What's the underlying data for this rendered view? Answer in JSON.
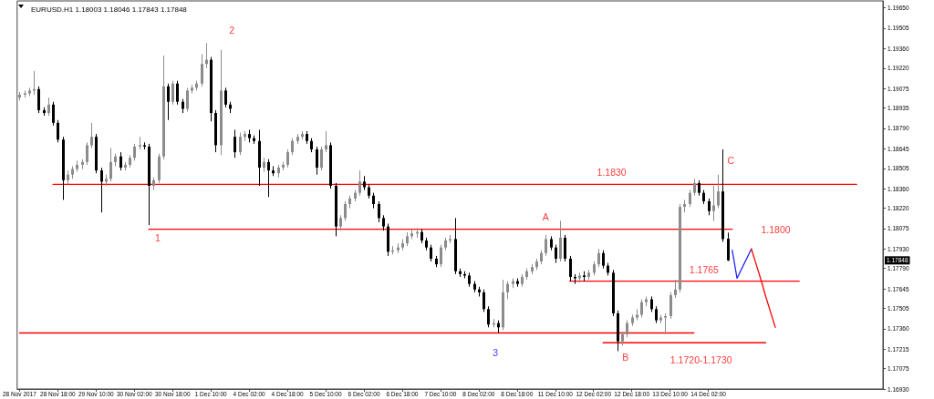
{
  "chart_data": {
    "type": "candlestick",
    "title": "EURUSD.H1 1.18003 1.18046 1.17843 1.17848",
    "categories": [
      "28 Nov 2017",
      null,
      null,
      null,
      null,
      null,
      null,
      null,
      "28 Nov 18:00",
      null,
      null,
      null,
      null,
      null,
      null,
      null,
      "29 Nov 10:00",
      null,
      null,
      null,
      null,
      null,
      null,
      null,
      "30 Nov 02:00",
      null,
      null,
      null,
      null,
      null,
      null,
      null,
      "30 Nov 18:00",
      null,
      null,
      null,
      null,
      null,
      null,
      null,
      "1 Dec 10:00",
      null,
      null,
      null,
      null,
      null,
      null,
      null,
      "4 Dec 02:00",
      null,
      null,
      null,
      null,
      null,
      null,
      null,
      "4 Dec 18:00",
      null,
      null,
      null,
      null,
      null,
      null,
      null,
      "5 Dec 10:00",
      null,
      null,
      null,
      null,
      null,
      null,
      null,
      "6 Dec 02:00",
      null,
      null,
      null,
      null,
      null,
      null,
      null,
      "6 Dec 18:00",
      null,
      null,
      null,
      null,
      null,
      null,
      null,
      "7 Dec 10:00",
      null,
      null,
      null,
      null,
      null,
      null,
      null,
      "8 Dec 02:00",
      null,
      null,
      null,
      null,
      null,
      null,
      null,
      "8 Dec 18:00",
      null,
      null,
      null,
      null,
      null,
      null,
      null,
      "11 Dec 10:00",
      null,
      null,
      null,
      null,
      null,
      null,
      null,
      "12 Dec 02:00",
      null,
      null,
      null,
      null,
      null,
      null,
      null,
      "12 Dec 18:00",
      null,
      null,
      null,
      null,
      null,
      null,
      null,
      "13 Dec 10:00",
      null,
      null,
      null,
      null,
      null,
      null,
      null,
      "14 Dec 02:00",
      null,
      null,
      null,
      null,
      null,
      null,
      null,
      null,
      null,
      null,
      null,
      null,
      null,
      null,
      null,
      null,
      null,
      null,
      null,
      null,
      null,
      null,
      null,
      null,
      null,
      null,
      null,
      null,
      null,
      null,
      null,
      null,
      null,
      null,
      null,
      null
    ],
    "ohlc": [
      [
        1.1901,
        1.1905,
        1.1899,
        1.1903
      ],
      [
        1.1903,
        1.1906,
        1.1901,
        1.1904
      ],
      [
        1.1904,
        1.1908,
        1.1902,
        1.1906
      ],
      [
        1.1906,
        1.192,
        1.1903,
        1.1907
      ],
      [
        1.1907,
        1.1909,
        1.189,
        1.1892
      ],
      [
        1.1892,
        1.1894,
        1.1888,
        1.189
      ],
      [
        1.189,
        1.1901,
        1.1888,
        1.1896
      ],
      [
        1.1896,
        1.1898,
        1.1881,
        1.1883
      ],
      [
        1.1883,
        1.1885,
        1.1869,
        1.1871
      ],
      [
        1.1871,
        1.1873,
        1.1828,
        1.1842
      ],
      [
        1.1842,
        1.1849,
        1.1839,
        1.1846
      ],
      [
        1.1846,
        1.1852,
        1.1843,
        1.185
      ],
      [
        1.185,
        1.1856,
        1.1848,
        1.1853
      ],
      [
        1.1853,
        1.1857,
        1.185,
        1.1855
      ],
      [
        1.1855,
        1.1869,
        1.1853,
        1.1867
      ],
      [
        1.1867,
        1.1883,
        1.1865,
        1.1873
      ],
      [
        1.1873,
        1.1875,
        1.1847,
        1.1849
      ],
      [
        1.1849,
        1.1851,
        1.1819,
        1.1841
      ],
      [
        1.1841,
        1.1846,
        1.1838,
        1.1843
      ],
      [
        1.1843,
        1.1865,
        1.1841,
        1.1855
      ],
      [
        1.1855,
        1.1861,
        1.1852,
        1.1859
      ],
      [
        1.1859,
        1.1862,
        1.1849,
        1.1851
      ],
      [
        1.1851,
        1.1855,
        1.1849,
        1.1853
      ],
      [
        1.1853,
        1.186,
        1.1851,
        1.1858
      ],
      [
        1.1858,
        1.1868,
        1.1856,
        1.1866
      ],
      [
        1.1866,
        1.1873,
        1.1864,
        1.1867
      ],
      [
        1.1867,
        1.1869,
        1.1864,
        1.1866
      ],
      [
        1.1866,
        1.1868,
        1.181,
        1.1838
      ],
      [
        1.1838,
        1.1844,
        1.1835,
        1.1842
      ],
      [
        1.1842,
        1.1861,
        1.184,
        1.1859
      ],
      [
        1.1859,
        1.1931,
        1.1857,
        1.1909
      ],
      [
        1.1909,
        1.1911,
        1.1885,
        1.1898
      ],
      [
        1.1898,
        1.1913,
        1.1896,
        1.1911
      ],
      [
        1.1911,
        1.1913,
        1.1896,
        1.1898
      ],
      [
        1.1898,
        1.19,
        1.189,
        1.1893
      ],
      [
        1.1893,
        1.1908,
        1.1891,
        1.1906
      ],
      [
        1.1906,
        1.191,
        1.1904,
        1.1908
      ],
      [
        1.1908,
        1.1913,
        1.1906,
        1.1911
      ],
      [
        1.1911,
        1.1932,
        1.1909,
        1.1925
      ],
      [
        1.1925,
        1.194,
        1.1922,
        1.1928
      ],
      [
        1.1928,
        1.193,
        1.1884,
        1.189
      ],
      [
        1.189,
        1.1892,
        1.1862,
        1.1867
      ],
      [
        1.1867,
        1.1935,
        1.186,
        1.1906
      ],
      [
        1.1906,
        1.1908,
        1.1894,
        1.1896
      ],
      [
        1.1896,
        1.1898,
        1.189,
        1.1893
      ],
      [
        1.1873,
        1.1878,
        1.1858,
        1.1862
      ],
      [
        1.1862,
        1.1876,
        1.186,
        1.1873
      ],
      [
        1.1873,
        1.1877,
        1.187,
        1.1875
      ],
      [
        1.1875,
        1.1878,
        1.1869,
        1.1872
      ],
      [
        1.1872,
        1.1874,
        1.1868,
        1.187
      ],
      [
        1.187,
        1.1878,
        1.1838,
        1.1851
      ],
      [
        1.1851,
        1.1858,
        1.1848,
        1.1855
      ],
      [
        1.1855,
        1.1857,
        1.183,
        1.1849
      ],
      [
        1.1849,
        1.1852,
        1.1845,
        1.1847
      ],
      [
        1.1847,
        1.1853,
        1.1844,
        1.1851
      ],
      [
        1.1851,
        1.1855,
        1.1849,
        1.1853
      ],
      [
        1.1853,
        1.1864,
        1.1851,
        1.1862
      ],
      [
        1.1862,
        1.1872,
        1.186,
        1.187
      ],
      [
        1.187,
        1.1875,
        1.1868,
        1.1873
      ],
      [
        1.1873,
        1.1877,
        1.1871,
        1.1875
      ],
      [
        1.1875,
        1.1877,
        1.1868,
        1.187
      ],
      [
        1.187,
        1.1872,
        1.1862,
        1.1864
      ],
      [
        1.1864,
        1.1866,
        1.1846,
        1.1851
      ],
      [
        1.1851,
        1.1866,
        1.1849,
        1.1864
      ],
      [
        1.1864,
        1.1877,
        1.1862,
        1.1867
      ],
      [
        1.1867,
        1.1869,
        1.1836,
        1.1838
      ],
      [
        1.1838,
        1.184,
        1.1802,
        1.1809
      ],
      [
        1.1809,
        1.1817,
        1.1806,
        1.1815
      ],
      [
        1.1815,
        1.1827,
        1.1813,
        1.1825
      ],
      [
        1.1825,
        1.1831,
        1.1822,
        1.1829
      ],
      [
        1.1829,
        1.1835,
        1.1827,
        1.1833
      ],
      [
        1.1833,
        1.1849,
        1.1831,
        1.1841
      ],
      [
        1.1841,
        1.1845,
        1.1835,
        1.1837
      ],
      [
        1.1837,
        1.1839,
        1.1829,
        1.1831
      ],
      [
        1.1831,
        1.1833,
        1.1822,
        1.1825
      ],
      [
        1.1825,
        1.1827,
        1.1812,
        1.1815
      ],
      [
        1.1815,
        1.1817,
        1.1806,
        1.1809
      ],
      [
        1.1809,
        1.1811,
        1.1788,
        1.1791
      ],
      [
        1.1791,
        1.1795,
        1.1789,
        1.1792
      ],
      [
        1.1792,
        1.1797,
        1.179,
        1.1794
      ],
      [
        1.1794,
        1.18,
        1.1792,
        1.1797
      ],
      [
        1.1797,
        1.1805,
        1.1795,
        1.1802
      ],
      [
        1.1802,
        1.1807,
        1.18,
        1.1804
      ],
      [
        1.1804,
        1.1808,
        1.1801,
        1.1805
      ],
      [
        1.1805,
        1.1807,
        1.1797,
        1.1799
      ],
      [
        1.1799,
        1.1801,
        1.1792,
        1.1794
      ],
      [
        1.1794,
        1.1796,
        1.1784,
        1.1786
      ],
      [
        1.1786,
        1.1788,
        1.178,
        1.1782
      ],
      [
        1.1782,
        1.1796,
        1.178,
        1.1794
      ],
      [
        1.1794,
        1.1801,
        1.1792,
        1.1799
      ],
      [
        1.1799,
        1.1803,
        1.1797,
        1.18
      ],
      [
        1.18,
        1.1815,
        1.1775,
        1.1777
      ],
      [
        1.1777,
        1.1779,
        1.1773,
        1.1775
      ],
      [
        1.1775,
        1.1777,
        1.1772,
        1.1774
      ],
      [
        1.1774,
        1.1776,
        1.1766,
        1.1768
      ],
      [
        1.1768,
        1.177,
        1.1762,
        1.1764
      ],
      [
        1.1764,
        1.1766,
        1.1759,
        1.1762
      ],
      [
        1.1762,
        1.1764,
        1.1748,
        1.175
      ],
      [
        1.175,
        1.1752,
        1.1737,
        1.1739
      ],
      [
        1.1739,
        1.1743,
        1.1737,
        1.174
      ],
      [
        1.174,
        1.1742,
        1.1733,
        1.1737
      ],
      [
        1.1737,
        1.1771,
        1.1735,
        1.1762
      ],
      [
        1.1762,
        1.177,
        1.1757,
        1.1768
      ],
      [
        1.1768,
        1.1772,
        1.1765,
        1.177
      ],
      [
        1.177,
        1.1772,
        1.1766,
        1.1768
      ],
      [
        1.1768,
        1.1775,
        1.1766,
        1.1773
      ],
      [
        1.1773,
        1.1779,
        1.1771,
        1.1777
      ],
      [
        1.1777,
        1.1782,
        1.1775,
        1.178
      ],
      [
        1.178,
        1.1786,
        1.1778,
        1.1784
      ],
      [
        1.1784,
        1.1792,
        1.1782,
        1.179
      ],
      [
        1.179,
        1.1803,
        1.1788,
        1.18
      ],
      [
        1.18,
        1.1802,
        1.1792,
        1.1794
      ],
      [
        1.1794,
        1.1796,
        1.1783,
        1.1786
      ],
      [
        1.1786,
        1.1813,
        1.1784,
        1.1801
      ],
      [
        1.1801,
        1.1803,
        1.1784,
        1.1786
      ],
      [
        1.1786,
        1.1788,
        1.177,
        1.1773
      ],
      [
        1.1773,
        1.1775,
        1.1768,
        1.1772
      ],
      [
        1.1772,
        1.1776,
        1.1769,
        1.1774
      ],
      [
        1.1774,
        1.1777,
        1.177,
        1.1773
      ],
      [
        1.1773,
        1.1778,
        1.1771,
        1.1776
      ],
      [
        1.1776,
        1.1784,
        1.1774,
        1.1782
      ],
      [
        1.1782,
        1.1793,
        1.178,
        1.179
      ],
      [
        1.179,
        1.1792,
        1.1779,
        1.1781
      ],
      [
        1.1781,
        1.1783,
        1.1774,
        1.1776
      ],
      [
        1.1776,
        1.1778,
        1.1745,
        1.1747
      ],
      [
        1.1747,
        1.1749,
        1.172,
        1.1727
      ],
      [
        1.1727,
        1.1734,
        1.1724,
        1.1732
      ],
      [
        1.1732,
        1.1742,
        1.173,
        1.174
      ],
      [
        1.174,
        1.1746,
        1.1738,
        1.1744
      ],
      [
        1.1744,
        1.175,
        1.1742,
        1.1746
      ],
      [
        1.1746,
        1.1757,
        1.1744,
        1.1755
      ],
      [
        1.1755,
        1.1759,
        1.1752,
        1.1757
      ],
      [
        1.1757,
        1.1759,
        1.1748,
        1.175
      ],
      [
        1.175,
        1.1752,
        1.174,
        1.1742
      ],
      [
        1.1742,
        1.1746,
        1.174,
        1.1744
      ],
      [
        1.1744,
        1.1747,
        1.1732,
        1.1745
      ],
      [
        1.1745,
        1.1762,
        1.1743,
        1.176
      ],
      [
        1.176,
        1.1771,
        1.1758,
        1.1764
      ],
      [
        1.1764,
        1.1825,
        1.1762,
        1.1823
      ],
      [
        1.1823,
        1.1828,
        1.1819,
        1.1825
      ],
      [
        1.1825,
        1.1835,
        1.1823,
        1.1833
      ],
      [
        1.1833,
        1.1843,
        1.1831,
        1.184
      ],
      [
        1.184,
        1.1842,
        1.1831,
        1.1833
      ],
      [
        1.1833,
        1.1835,
        1.1825,
        1.1827
      ],
      [
        1.1827,
        1.1829,
        1.1817,
        1.182
      ],
      [
        1.182,
        1.1838,
        1.1813,
        1.1824
      ],
      [
        1.1824,
        1.1846,
        1.1822,
        1.1834
      ],
      [
        1.1834,
        1.1864,
        1.1798,
        1.18
      ],
      [
        1.18003,
        1.18046,
        1.17843,
        1.17848
      ],
      null,
      null,
      null,
      null,
      null,
      null,
      null,
      null,
      null,
      null,
      null,
      null,
      null,
      null,
      null,
      null,
      null,
      null,
      null,
      null,
      null,
      null,
      null,
      null,
      null,
      null,
      null,
      null,
      null,
      null,
      null,
      null
    ],
    "ylim": [
      1.1693,
      1.197
    ],
    "yticks": [
      {
        "value": 1.1693,
        "label": "1.16930"
      },
      1.17075,
      1.17215,
      {
        "value": 1.1736,
        "label": "1.17360"
      },
      1.17505,
      1.17645,
      {
        "value": 1.1779,
        "label": "1.17790"
      },
      {
        "value": 1.1793,
        "label": "1.17930"
      },
      1.18075,
      {
        "value": 1.1822,
        "label": "1.18220"
      },
      {
        "value": 1.1836,
        "label": "1.18360"
      },
      1.18505,
      1.18645,
      {
        "value": 1.1879,
        "label": "1.18790"
      },
      1.18935,
      1.19075,
      {
        "value": 1.1922,
        "label": "1.19220"
      },
      {
        "value": 1.1936,
        "label": "1.19360"
      },
      1.19505,
      {
        "value": 1.1965,
        "label": "1.19650"
      }
    ],
    "marker": "none",
    "series": [
      {
        "type": "line",
        "color": "#ff0000",
        "values": [
          null,
          null,
          null,
          null,
          null,
          null,
          null,
          1.1839,
          1.1839,
          1.1839,
          1.1839,
          1.1839,
          1.1839,
          1.1839,
          1.1839,
          1.1839,
          1.1839,
          1.1839,
          1.1839,
          1.1839,
          1.1839,
          1.1839,
          1.1839,
          1.1839,
          1.1839,
          1.1839,
          1.1839,
          1.1839,
          1.1839,
          1.1839,
          1.1839,
          1.1839,
          1.1839,
          1.1839,
          1.1839,
          1.1839,
          1.1839,
          1.1839,
          1.1839,
          1.1839,
          1.1839,
          1.1839,
          1.1839,
          1.1839,
          1.1839,
          1.1839,
          1.1839,
          1.1839,
          1.1839,
          1.1839,
          1.1839,
          1.1839,
          1.1839,
          1.1839,
          1.1839,
          1.1839,
          1.1839,
          1.1839,
          1.1839,
          1.1839,
          1.1839,
          1.1839,
          1.1839,
          1.1839,
          1.1839,
          1.1839,
          1.1839,
          1.1839,
          1.1839,
          1.1839,
          1.1839,
          1.1839,
          1.1839,
          1.1839,
          1.1839,
          1.1839,
          1.1839,
          1.1839,
          1.1839,
          1.1839,
          1.1839,
          1.1839,
          1.1839,
          1.1839,
          1.1839,
          1.1839,
          1.1839,
          1.1839,
          1.1839,
          1.1839,
          1.1839,
          1.1839,
          1.1839,
          1.1839,
          1.1839,
          1.1839,
          1.1839,
          1.1839,
          1.1839,
          1.1839,
          1.1839,
          1.1839,
          1.1839,
          1.1839,
          1.1839,
          1.1839,
          1.1839,
          1.1839,
          1.1839,
          1.1839,
          1.1839,
          1.1839,
          1.1839,
          1.1839,
          1.1839,
          1.1839,
          1.1839,
          1.1839,
          1.1839,
          1.1839,
          1.1839,
          1.1839,
          1.1839,
          1.1839,
          1.1839,
          1.1839,
          1.1839,
          1.1839,
          1.1839,
          1.1839,
          1.1839,
          1.1839,
          1.1839,
          1.1839,
          1.1839,
          1.1839,
          1.1839,
          1.1839,
          1.1839,
          1.1839,
          1.1839,
          1.1839,
          1.1839,
          1.1839,
          1.1839,
          1.1839,
          1.1839,
          1.1839,
          1.1839,
          1.1839,
          1.1839,
          1.1839,
          1.1839,
          1.1839,
          1.1839,
          1.1839,
          1.1839,
          1.1839,
          1.1839,
          1.1839,
          1.1839,
          1.1839,
          1.1839,
          1.1839,
          1.1839,
          1.1839,
          1.1839,
          1.1839,
          1.1839,
          1.1839,
          1.1839,
          1.1839,
          1.1839,
          1.1839,
          1.1839,
          1.1839,
          null,
          null,
          null,
          null,
          null
        ]
      },
      {
        "type": "line",
        "color": "#ff0000",
        "values": [
          null,
          null,
          null,
          null,
          null,
          null,
          null,
          null,
          null,
          null,
          null,
          null,
          null,
          null,
          null,
          null,
          null,
          null,
          null,
          null,
          null,
          null,
          null,
          null,
          null,
          null,
          null,
          1.1807,
          1.1807,
          1.1807,
          1.1807,
          1.1807,
          1.1807,
          1.1807,
          1.1807,
          1.1807,
          1.1807,
          1.1807,
          1.1807,
          1.1807,
          1.1807,
          1.1807,
          1.1807,
          1.1807,
          1.1807,
          1.1807,
          1.1807,
          1.1807,
          1.1807,
          1.1807,
          1.1807,
          1.1807,
          1.1807,
          1.1807,
          1.1807,
          1.1807,
          1.1807,
          1.1807,
          1.1807,
          1.1807,
          1.1807,
          1.1807,
          1.1807,
          1.1807,
          1.1807,
          1.1807,
          1.1807,
          1.1807,
          1.1807,
          1.1807,
          1.1807,
          1.1807,
          1.1807,
          1.1807,
          1.1807,
          1.1807,
          1.1807,
          1.1807,
          1.1807,
          1.1807,
          1.1807,
          1.1807,
          1.1807,
          1.1807,
          1.1807,
          1.1807,
          1.1807,
          1.1807,
          1.1807,
          1.1807,
          1.1807,
          1.1807,
          1.1807,
          1.1807,
          1.1807,
          1.1807,
          1.1807,
          1.1807,
          1.1807,
          1.1807,
          1.1807,
          1.1807,
          1.1807,
          1.1807,
          1.1807,
          1.1807,
          1.1807,
          1.1807,
          1.1807,
          1.1807,
          1.1807,
          1.1807,
          1.1807,
          1.1807,
          1.1807,
          1.1807,
          1.1807,
          1.1807,
          1.1807,
          1.1807,
          1.1807,
          1.1807,
          1.1807,
          1.1807,
          1.1807,
          1.1807,
          1.1807,
          1.1807,
          1.1807,
          1.1807,
          1.1807,
          1.1807,
          1.1807,
          1.1807,
          1.1807,
          1.1807,
          1.1807,
          1.1807,
          1.1807,
          1.1807,
          1.1807,
          1.1807,
          1.1807,
          1.1807,
          1.1807,
          1.1807,
          1.1807,
          1.1807,
          1.1807,
          1.1807,
          null,
          null,
          null,
          null,
          null,
          null,
          null,
          null,
          null,
          null,
          null,
          null,
          null,
          null,
          null,
          null,
          null,
          null,
          null,
          null,
          null,
          null,
          null,
          null,
          null,
          null,
          null,
          null,
          null,
          null,
          null
        ]
      },
      {
        "type": "line",
        "color": "#ff0000",
        "values": [
          null,
          null,
          null,
          null,
          null,
          null,
          null,
          null,
          null,
          null,
          null,
          null,
          null,
          null,
          null,
          null,
          null,
          null,
          null,
          null,
          null,
          null,
          null,
          null,
          null,
          null,
          null,
          null,
          null,
          null,
          null,
          null,
          null,
          null,
          null,
          null,
          null,
          null,
          null,
          null,
          null,
          null,
          null,
          null,
          null,
          null,
          null,
          null,
          null,
          null,
          null,
          null,
          null,
          null,
          null,
          null,
          null,
          null,
          null,
          null,
          null,
          null,
          null,
          null,
          null,
          null,
          null,
          null,
          null,
          null,
          null,
          null,
          null,
          null,
          null,
          null,
          null,
          null,
          null,
          null,
          null,
          null,
          null,
          null,
          null,
          null,
          null,
          null,
          null,
          null,
          null,
          null,
          null,
          null,
          null,
          null,
          null,
          null,
          null,
          null,
          null,
          null,
          null,
          null,
          null,
          null,
          null,
          null,
          null,
          null,
          null,
          null,
          null,
          null,
          null,
          1.177,
          1.177,
          1.177,
          1.177,
          1.177,
          1.177,
          1.177,
          1.177,
          1.177,
          1.177,
          1.177,
          1.177,
          1.177,
          1.177,
          1.177,
          1.177,
          1.177,
          1.177,
          1.177,
          1.177,
          1.177,
          1.177,
          1.177,
          1.177,
          1.177,
          1.177,
          1.177,
          1.177,
          1.177,
          1.177,
          1.177,
          1.177,
          1.177,
          1.177,
          1.177,
          1.177,
          1.177,
          1.177,
          1.177,
          1.177,
          1.177,
          1.177,
          1.177,
          1.177,
          1.177,
          1.177,
          1.177,
          1.177,
          1.177,
          null,
          null,
          null,
          null,
          null,
          null,
          null,
          null,
          null,
          null,
          null,
          null,
          null,
          null,
          null,
          null,
          null
        ]
      },
      {
        "type": "line",
        "color": "#ff0000",
        "values": [
          1.1733,
          1.1733,
          1.1733,
          1.1733,
          1.1733,
          1.1733,
          1.1733,
          1.1733,
          1.1733,
          1.1733,
          1.1733,
          1.1733,
          1.1733,
          1.1733,
          1.1733,
          1.1733,
          1.1733,
          1.1733,
          1.1733,
          1.1733,
          1.1733,
          1.1733,
          1.1733,
          1.1733,
          1.1733,
          1.1733,
          1.1733,
          1.1733,
          1.1733,
          1.1733,
          1.1733,
          1.1733,
          1.1733,
          1.1733,
          1.1733,
          1.1733,
          1.1733,
          1.1733,
          1.1733,
          1.1733,
          1.1733,
          1.1733,
          1.1733,
          1.1733,
          1.1733,
          1.1733,
          1.1733,
          1.1733,
          1.1733,
          1.1733,
          1.1733,
          1.1733,
          1.1733,
          1.1733,
          1.1733,
          1.1733,
          1.1733,
          1.1733,
          1.1733,
          1.1733,
          1.1733,
          1.1733,
          1.1733,
          1.1733,
          1.1733,
          1.1733,
          1.1733,
          1.1733,
          1.1733,
          1.1733,
          1.1733,
          1.1733,
          1.1733,
          1.1733,
          1.1733,
          1.1733,
          1.1733,
          1.1733,
          1.1733,
          1.1733,
          1.1733,
          1.1733,
          1.1733,
          1.1733,
          1.1733,
          1.1733,
          1.1733,
          1.1733,
          1.1733,
          1.1733,
          1.1733,
          1.1733,
          1.1733,
          1.1733,
          1.1733,
          1.1733,
          1.1733,
          1.1733,
          1.1733,
          1.1733,
          1.1733,
          1.1733,
          1.1733,
          1.1733,
          1.1733,
          1.1733,
          1.1733,
          1.1733,
          1.1733,
          1.1733,
          1.1733,
          1.1733,
          1.1733,
          1.1733,
          1.1733,
          1.1733,
          1.1733,
          1.1733,
          1.1733,
          1.1733,
          1.1733,
          1.1733,
          1.1733,
          1.1733,
          1.1733,
          1.1733,
          1.1733,
          1.1733,
          1.1733,
          1.1733,
          1.1733,
          1.1733,
          1.1733,
          1.1733,
          1.1733,
          1.1733,
          1.1733,
          1.1733,
          1.1733,
          1.1733,
          1.1733,
          1.1733,
          null,
          null,
          null,
          null,
          null,
          null,
          null,
          null,
          null,
          null,
          null,
          null,
          null,
          null,
          null,
          null,
          null,
          null,
          null,
          null,
          null,
          null,
          null,
          null,
          null,
          null,
          null,
          null,
          null,
          null,
          null,
          null,
          null,
          null,
          null,
          null,
          null,
          null,
          null
        ]
      },
      {
        "type": "line",
        "color": "#ff0000",
        "values": [
          null,
          null,
          null,
          null,
          null,
          null,
          null,
          null,
          null,
          null,
          null,
          null,
          null,
          null,
          null,
          null,
          null,
          null,
          null,
          null,
          null,
          null,
          null,
          null,
          null,
          null,
          null,
          null,
          null,
          null,
          null,
          null,
          null,
          null,
          null,
          null,
          null,
          null,
          null,
          null,
          null,
          null,
          null,
          null,
          null,
          null,
          null,
          null,
          null,
          null,
          null,
          null,
          null,
          null,
          null,
          null,
          null,
          null,
          null,
          null,
          null,
          null,
          null,
          null,
          null,
          null,
          null,
          null,
          null,
          null,
          null,
          null,
          null,
          null,
          null,
          null,
          null,
          null,
          null,
          null,
          null,
          null,
          null,
          null,
          null,
          null,
          null,
          null,
          null,
          null,
          null,
          null,
          null,
          null,
          null,
          null,
          null,
          null,
          null,
          null,
          null,
          null,
          null,
          null,
          null,
          null,
          null,
          null,
          null,
          null,
          null,
          null,
          null,
          null,
          null,
          null,
          null,
          null,
          null,
          null,
          null,
          null,
          1.1726,
          1.1726,
          1.1726,
          1.1726,
          1.1726,
          1.1726,
          1.1726,
          1.1726,
          1.1726,
          1.1726,
          1.1726,
          1.1726,
          1.1726,
          1.1726,
          1.1726,
          1.1726,
          1.1726,
          1.1726,
          1.1726,
          1.1726,
          1.1726,
          1.1726,
          1.1726,
          1.1726,
          1.1726,
          1.1726,
          1.1726,
          1.1726,
          1.1726,
          1.1726,
          1.1726,
          1.1726,
          1.1726,
          1.1726,
          1.1726,
          null,
          null,
          null,
          null,
          null,
          null,
          null,
          null,
          null,
          null,
          null,
          null,
          null,
          null,
          null,
          null,
          null,
          null,
          null,
          null,
          null,
          null,
          null,
          null
        ]
      },
      {
        "type": "line",
        "color": "#1f1fff",
        "values": [
          null,
          null,
          null,
          null,
          null,
          null,
          null,
          null,
          null,
          null,
          null,
          null,
          null,
          null,
          null,
          null,
          null,
          null,
          null,
          null,
          null,
          null,
          null,
          null,
          null,
          null,
          null,
          null,
          null,
          null,
          null,
          null,
          null,
          null,
          null,
          null,
          null,
          null,
          null,
          null,
          null,
          null,
          null,
          null,
          null,
          null,
          null,
          null,
          null,
          null,
          null,
          null,
          null,
          null,
          null,
          null,
          null,
          null,
          null,
          null,
          null,
          null,
          null,
          null,
          null,
          null,
          null,
          null,
          null,
          null,
          null,
          null,
          null,
          null,
          null,
          null,
          null,
          null,
          null,
          null,
          null,
          null,
          null,
          null,
          null,
          null,
          null,
          null,
          null,
          null,
          null,
          null,
          null,
          null,
          null,
          null,
          null,
          null,
          null,
          null,
          null,
          null,
          null,
          null,
          null,
          null,
          null,
          null,
          null,
          null,
          null,
          null,
          null,
          null,
          null,
          null,
          null,
          null,
          null,
          null,
          null,
          null,
          null,
          null,
          null,
          null,
          null,
          null,
          null,
          null,
          null,
          null,
          null,
          null,
          null,
          null,
          null,
          null,
          null,
          null,
          null,
          null,
          null,
          null,
          null,
          null,
          null,
          null,
          null,
          1.1792,
          1.1772,
          1.1779,
          1.1786,
          1.1793,
          null,
          null,
          null,
          null,
          null,
          null,
          null,
          null,
          null,
          null,
          null,
          null,
          null,
          null,
          null,
          null,
          null,
          null,
          null,
          null,
          null,
          null,
          null,
          null,
          null,
          null,
          null
        ]
      },
      {
        "type": "line",
        "color": "#ff0000",
        "values": [
          null,
          null,
          null,
          null,
          null,
          null,
          null,
          null,
          null,
          null,
          null,
          null,
          null,
          null,
          null,
          null,
          null,
          null,
          null,
          null,
          null,
          null,
          null,
          null,
          null,
          null,
          null,
          null,
          null,
          null,
          null,
          null,
          null,
          null,
          null,
          null,
          null,
          null,
          null,
          null,
          null,
          null,
          null,
          null,
          null,
          null,
          null,
          null,
          null,
          null,
          null,
          null,
          null,
          null,
          null,
          null,
          null,
          null,
          null,
          null,
          null,
          null,
          null,
          null,
          null,
          null,
          null,
          null,
          null,
          null,
          null,
          null,
          null,
          null,
          null,
          null,
          null,
          null,
          null,
          null,
          null,
          null,
          null,
          null,
          null,
          null,
          null,
          null,
          null,
          null,
          null,
          null,
          null,
          null,
          null,
          null,
          null,
          null,
          null,
          null,
          null,
          null,
          null,
          null,
          null,
          null,
          null,
          null,
          null,
          null,
          null,
          null,
          null,
          null,
          null,
          null,
          null,
          null,
          null,
          null,
          null,
          null,
          null,
          null,
          null,
          null,
          null,
          null,
          null,
          null,
          null,
          null,
          null,
          null,
          null,
          null,
          null,
          null,
          null,
          null,
          null,
          null,
          null,
          null,
          null,
          null,
          null,
          null,
          null,
          null,
          null,
          null,
          null,
          1.1793,
          1.1782,
          1.1771,
          1.1759,
          1.1748,
          1.1737,
          null,
          null,
          null,
          null,
          null,
          null,
          null,
          null,
          null,
          null,
          null,
          null,
          null,
          null,
          null,
          null,
          null,
          null,
          null,
          null,
          null,
          null
        ]
      }
    ],
    "annotations": [
      "1",
      "2",
      "3",
      "A",
      "B",
      "C",
      "1.1830",
      "1.1800",
      "1.1765",
      "1.1720-1.1730",
      {
        "text": "1.17848",
        "y": 1.17848
      }
    ]
  }
}
